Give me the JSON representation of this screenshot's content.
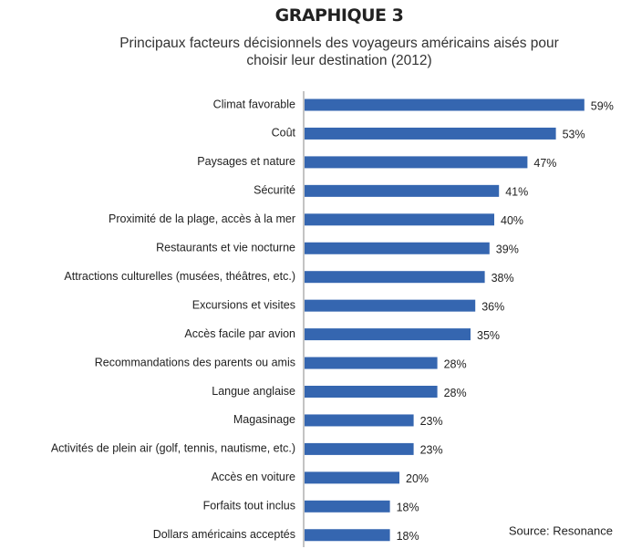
{
  "chart_data": {
    "type": "barh",
    "title": "GRAPHIQUE 3",
    "subtitle": "Principaux facteurs décisionnels des voyageurs  américains aisés pour choisir leur destination (2012)",
    "categories": [
      "Climat favorable",
      "Coût",
      "Paysages et nature",
      "Sécurité",
      "Proximité de la plage, accès à la mer",
      "Restaurants et vie nocturne",
      "Attractions culturelles (musées, théâtres, etc.)",
      "Excursions et visites",
      "Accès facile par avion",
      "Recommandations des parents ou amis",
      "Langue anglaise",
      "Magasinage",
      "Activités de plein air (golf, tennis, nautisme, etc.)",
      "Accès en voiture",
      "Forfaits tout inclus",
      "Dollars américains acceptés"
    ],
    "values": [
      59,
      53,
      47,
      41,
      40,
      39,
      38,
      36,
      35,
      28,
      28,
      23,
      23,
      20,
      18,
      18
    ],
    "value_labels": [
      "59%",
      "53%",
      "47%",
      "41%",
      "40%",
      "39%",
      "38%",
      "36%",
      "35%",
      "28%",
      "28%",
      "23%",
      "23%",
      "20%",
      "18%",
      "18%"
    ],
    "color": "#3566b0",
    "annotation": "Source: Resonance"
  }
}
